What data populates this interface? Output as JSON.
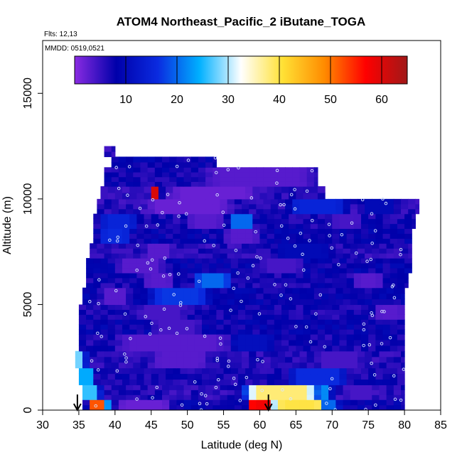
{
  "chart_data": {
    "type": "heatmap",
    "title": "ATOM4 Northeast_Pacific_2 iButane_TOGA",
    "flights_note": "Flts: 12,13",
    "date_note": "MMDD: 0519,0521",
    "xlabel": "Latitude (deg N)",
    "ylabel": "Altitude (m)",
    "xlim": [
      30,
      85
    ],
    "ylim": [
      0,
      17500
    ],
    "x_ticks": [
      "30",
      "35",
      "40",
      "45",
      "50",
      "55",
      "60",
      "65",
      "70",
      "75",
      "80",
      "85"
    ],
    "y_ticks": [
      "0",
      "5000",
      "10000",
      "15000"
    ],
    "colorbar": {
      "range": [
        0,
        65
      ],
      "ticks": [
        "10",
        "20",
        "30",
        "40",
        "50",
        "60"
      ],
      "colors": [
        "#8a2be2",
        "#0000aa",
        "#0a2be0",
        "#00b0ff",
        "#ffffff",
        "#ffe135",
        "#ff8c00",
        "#ff0000",
        "#a01818"
      ]
    },
    "profiles_altitude_m": [
      {
        "alt_bottom": 0,
        "alt_top": 500,
        "lat_min": 35.5,
        "lat_max": 80,
        "value": 8,
        "features": [
          [
            36.5,
            39,
            52
          ],
          [
            58.5,
            62,
            58
          ],
          [
            62,
            69,
            40
          ],
          [
            69,
            71,
            20
          ],
          [
            40,
            48,
            2
          ]
        ]
      },
      {
        "alt_bottom": 500,
        "alt_top": 1200,
        "lat_min": 35.5,
        "lat_max": 80,
        "value": 6,
        "features": [
          [
            35.5,
            38,
            26
          ],
          [
            58,
            68,
            38
          ],
          [
            68,
            70,
            22
          ],
          [
            72,
            76,
            4
          ]
        ]
      },
      {
        "alt_bottom": 1200,
        "alt_top": 2000,
        "lat_min": 35,
        "lat_max": 80,
        "value": 7,
        "features": [
          [
            35,
            37,
            24
          ],
          [
            64,
            72,
            16
          ]
        ]
      },
      {
        "alt_bottom": 2000,
        "alt_top": 2800,
        "lat_min": 34.5,
        "lat_max": 80,
        "value": 6,
        "features": [
          [
            34.5,
            36,
            28
          ],
          [
            45,
            53,
            3
          ],
          [
            68,
            74,
            4
          ]
        ]
      },
      {
        "alt_bottom": 2800,
        "alt_top": 3600,
        "lat_min": 35,
        "lat_max": 80,
        "value": 7,
        "features": [
          [
            40,
            56,
            3
          ],
          [
            56,
            62,
            11
          ]
        ]
      },
      {
        "alt_bottom": 3600,
        "alt_top": 4300,
        "lat_min": 35,
        "lat_max": 80,
        "value": 8,
        "features": [
          [
            45,
            52,
            4
          ]
        ]
      },
      {
        "alt_bottom": 4300,
        "alt_top": 5000,
        "lat_min": 35,
        "lat_max": 80,
        "value": 7,
        "features": [
          [
            43,
            50,
            4
          ],
          [
            76,
            80,
            3
          ]
        ]
      },
      {
        "alt_bottom": 5000,
        "alt_top": 5800,
        "lat_min": 35.5,
        "lat_max": 80,
        "value": 8,
        "features": [
          [
            45,
            53,
            17
          ],
          [
            38,
            42,
            3
          ]
        ]
      },
      {
        "alt_bottom": 5800,
        "alt_top": 6500,
        "lat_min": 36,
        "lat_max": 80.5,
        "value": 7,
        "features": [
          [
            51,
            56,
            20
          ],
          [
            44,
            48,
            3
          ],
          [
            73,
            77,
            3
          ]
        ]
      },
      {
        "alt_bottom": 6500,
        "alt_top": 7200,
        "lat_min": 36,
        "lat_max": 81,
        "value": 8,
        "features": [
          [
            40,
            47,
            3
          ],
          [
            60,
            66,
            4
          ]
        ]
      },
      {
        "alt_bottom": 7200,
        "alt_top": 7900,
        "lat_min": 36.5,
        "lat_max": 81,
        "value": 6,
        "features": [
          [
            44,
            48,
            3
          ],
          [
            62,
            70,
            10
          ]
        ]
      },
      {
        "alt_bottom": 7900,
        "alt_top": 8600,
        "lat_min": 37,
        "lat_max": 81,
        "value": 8,
        "features": [
          [
            38,
            42,
            16
          ],
          [
            55,
            60,
            3
          ]
        ]
      },
      {
        "alt_bottom": 8600,
        "alt_top": 9300,
        "lat_min": 37,
        "lat_max": 81.5,
        "value": 7,
        "features": [
          [
            38,
            43,
            15
          ],
          [
            56,
            59,
            20
          ],
          [
            50,
            55,
            3
          ],
          [
            70,
            74,
            4
          ]
        ]
      },
      {
        "alt_bottom": 9300,
        "alt_top": 10000,
        "lat_min": 37.5,
        "lat_max": 82,
        "value": 6,
        "features": [
          [
            44,
            56,
            2
          ],
          [
            64,
            72,
            15
          ],
          [
            74,
            79,
            10
          ]
        ]
      },
      {
        "alt_bottom": 10000,
        "alt_top": 10600,
        "lat_min": 38,
        "lat_max": 69,
        "value": 6,
        "features": [
          [
            45,
            46,
            60
          ],
          [
            47,
            60,
            2
          ]
        ]
      },
      {
        "alt_bottom": 10600,
        "alt_top": 11500,
        "lat_min": 38.5,
        "lat_max": 68,
        "value": 7,
        "features": [
          [
            52,
            68,
            3
          ]
        ]
      },
      {
        "alt_bottom": 11500,
        "alt_top": 12000,
        "lat_min": 39.5,
        "lat_max": 54,
        "value": 8,
        "features": []
      },
      {
        "alt_bottom": 12000,
        "alt_top": 12500,
        "lat_min": 38.5,
        "lat_max": 40,
        "value": 6,
        "features": []
      }
    ],
    "arrows_lat": [
      34.8,
      61.2
    ]
  }
}
